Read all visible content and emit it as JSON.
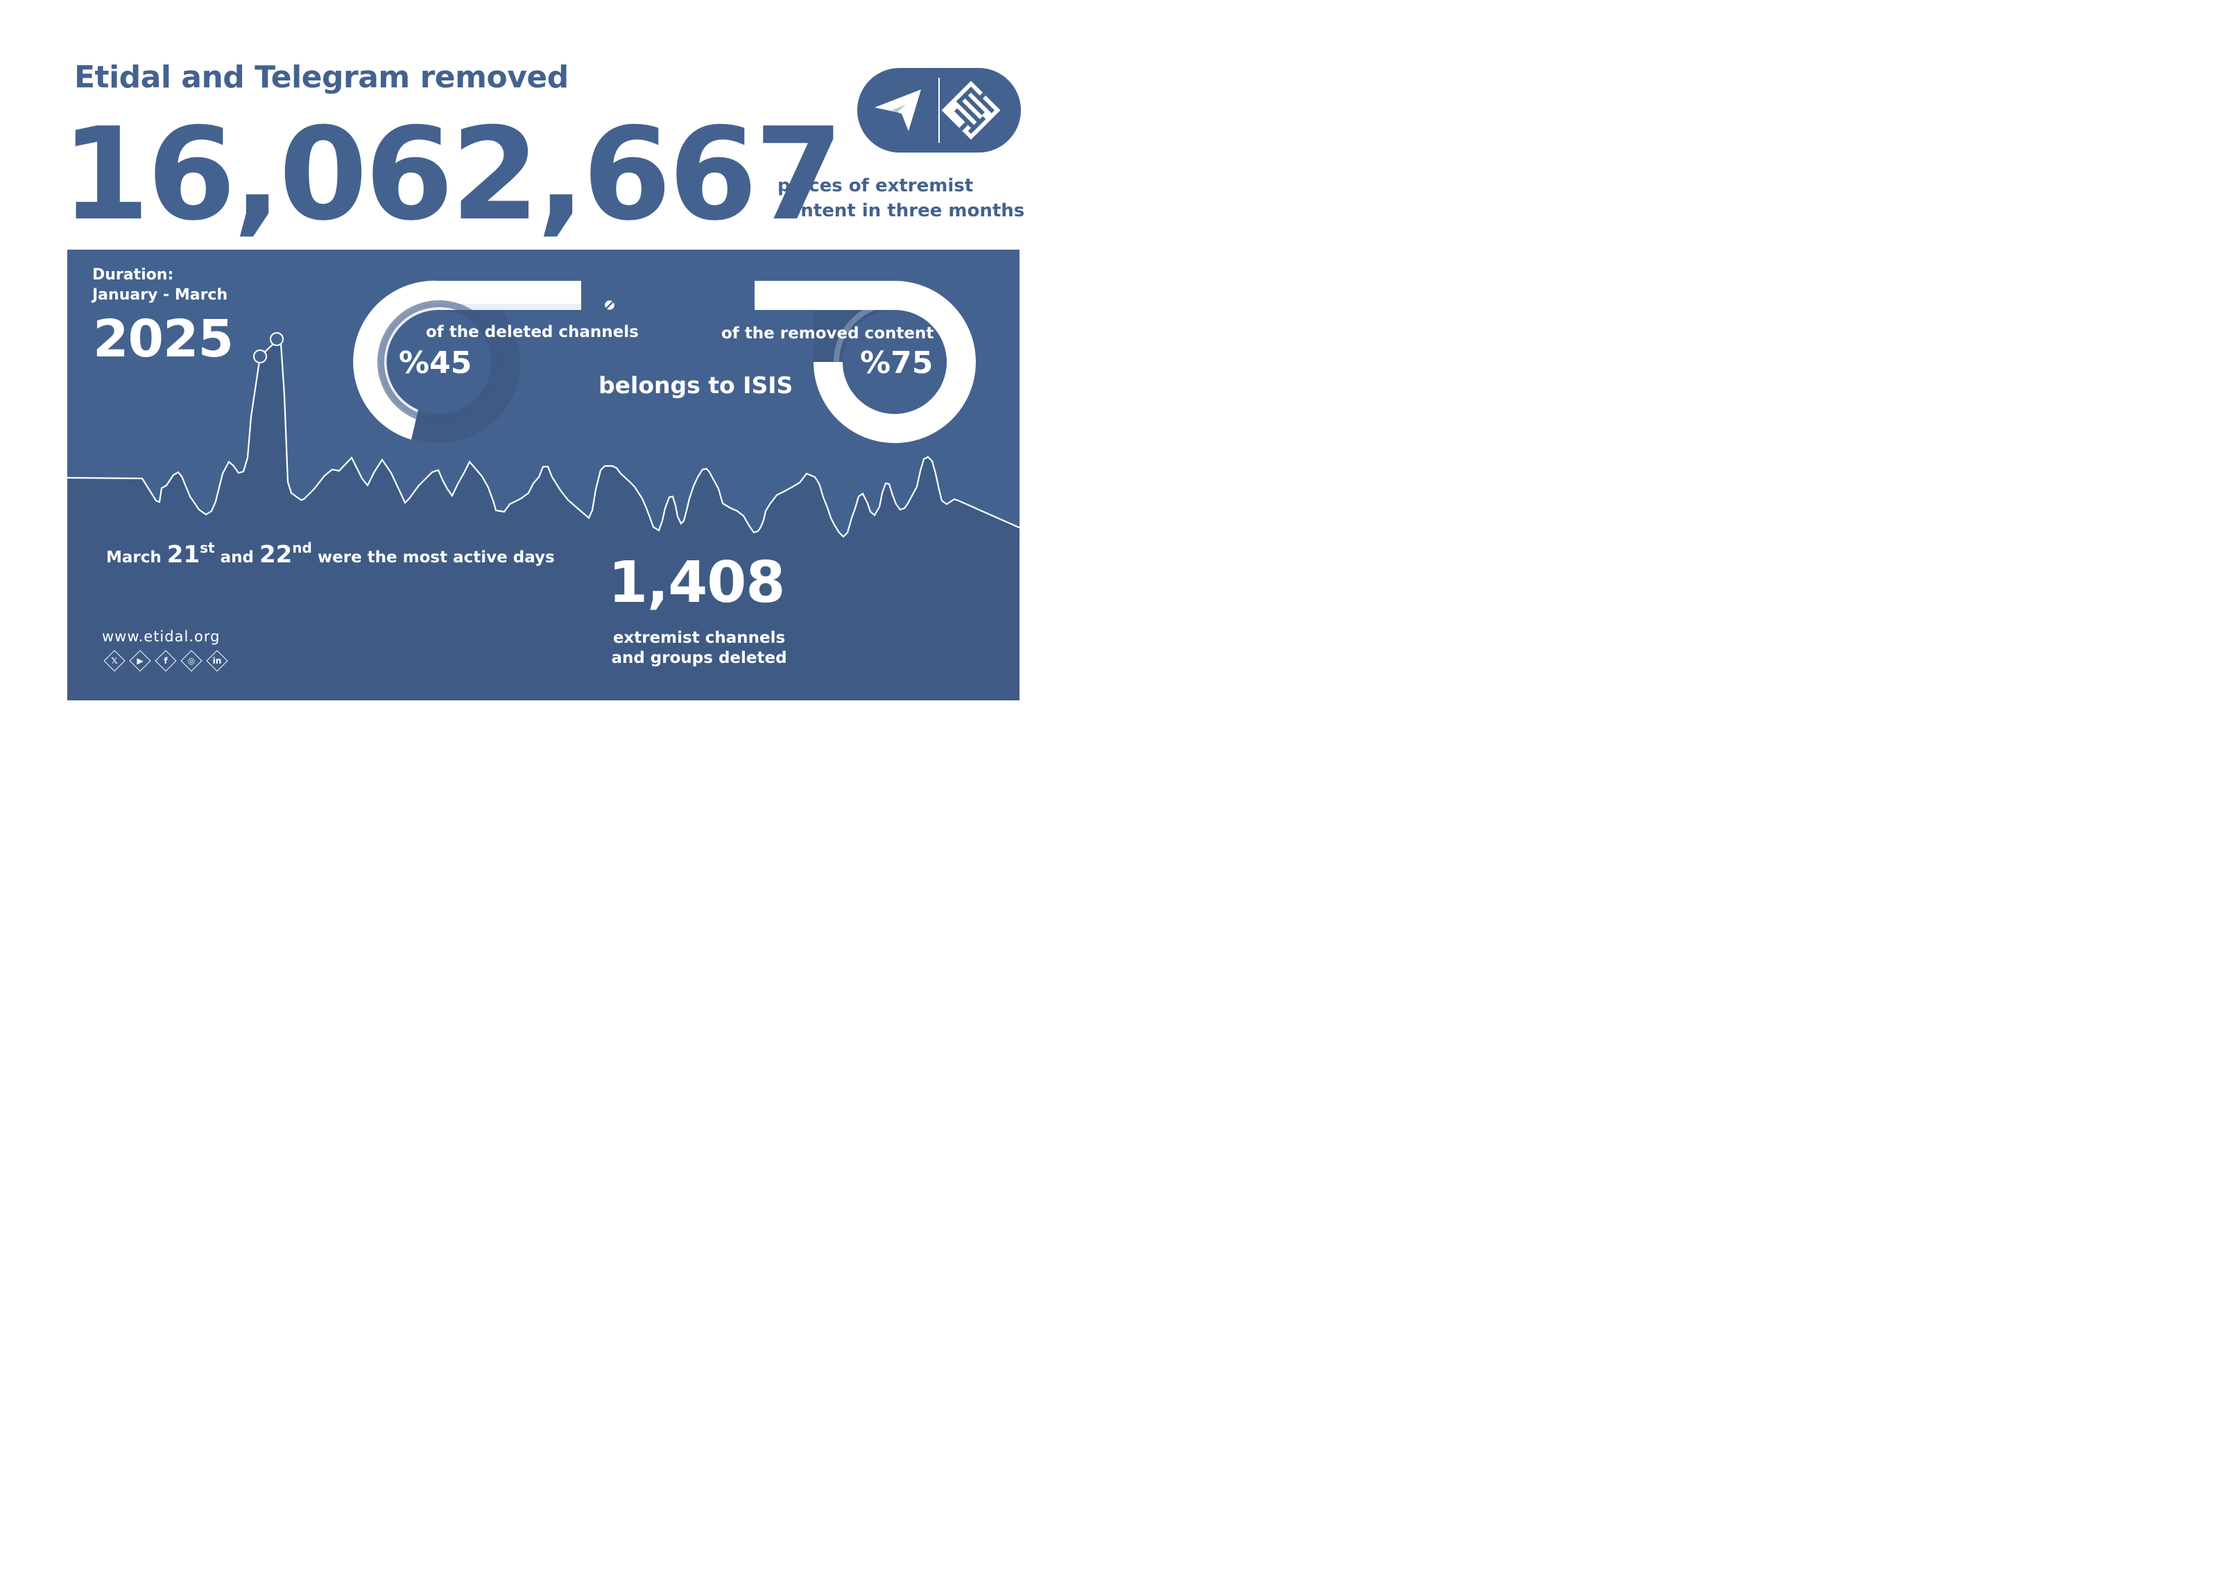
{
  "header": {
    "headline": "Etidal and Telegram removed",
    "big_number": "16,062,667",
    "subline_1": "pieces of extremist",
    "subline_2": "content in three months"
  },
  "logos": {
    "left_icon": "telegram-plane-icon",
    "right_icon": "etidal-kufic-logo"
  },
  "duration": {
    "label": "Duration:",
    "months": "January - March",
    "year": "2025"
  },
  "stats": {
    "channels_text": "of the deleted channels",
    "channels_percent": "%45",
    "channels_value": 45,
    "channels_icon": "video-blocked-icon",
    "content_text": "of the removed content",
    "content_percent": "%75",
    "content_value": 75,
    "content_icon": "trash-icon",
    "belongs": "belongs to ISIS"
  },
  "active_days": {
    "prefix": "March",
    "day1": "21",
    "day1_suffix": "st",
    "and": "and",
    "day2": "22",
    "day2_suffix": "nd",
    "suffix": "were the most active days"
  },
  "deleted": {
    "count": "1,408",
    "label_1": "extremist channels",
    "label_2": "and groups deleted"
  },
  "footer": {
    "website": "www.etidal.org",
    "social": [
      {
        "icon": "x-twitter-icon",
        "glyph": "𝕏"
      },
      {
        "icon": "youtube-icon",
        "glyph": "▶"
      },
      {
        "icon": "facebook-icon",
        "glyph": "f"
      },
      {
        "icon": "instagram-icon",
        "glyph": "◎"
      },
      {
        "icon": "linkedin-icon",
        "glyph": "in"
      }
    ]
  },
  "colors": {
    "brand_blue": "#44628f",
    "dark_band": "#3f5b85",
    "white": "#ffffff"
  }
}
